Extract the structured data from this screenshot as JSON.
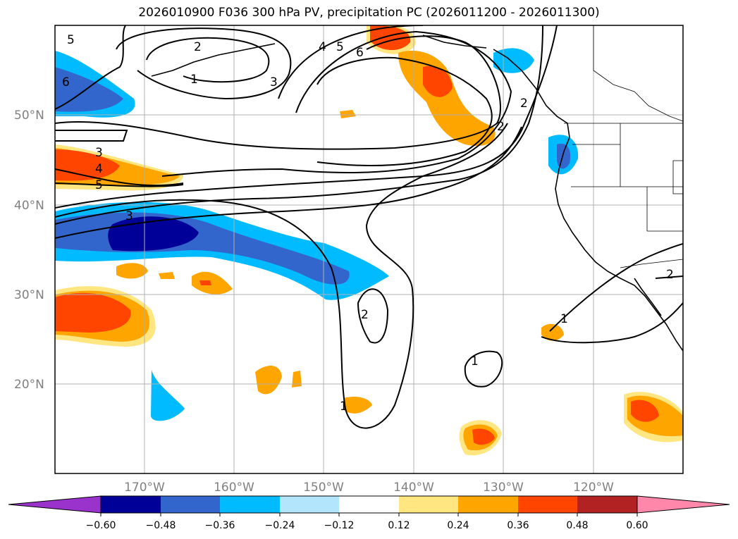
{
  "title": "2026010900 F036 300 hPa PV, precipitation PC (2026011200 - 2026011300)",
  "map": {
    "lat_labels": [
      "50°N",
      "40°N",
      "30°N",
      "20°N"
    ],
    "lon_labels": [
      "170°W",
      "160°W",
      "150°W",
      "140°W",
      "130°W",
      "120°W"
    ],
    "contour_labels": [
      "2",
      "1",
      "3",
      "4",
      "5",
      "6",
      "3",
      "4",
      "5",
      "3",
      "2",
      "1",
      "1",
      "2",
      "1",
      "2",
      "5",
      "6",
      "2"
    ]
  },
  "colorbar": {
    "ticks": [
      "−0.60",
      "−0.48",
      "−0.36",
      "−0.24",
      "−0.12",
      "0.12",
      "0.24",
      "0.36",
      "0.48",
      "0.60"
    ],
    "colors": [
      "#9933cc",
      "#000099",
      "#3366cc",
      "#00bbff",
      "#b3e5fc",
      "#ffffff",
      "#ffe680",
      "#ffa500",
      "#ff4500",
      "#b22222",
      "#ff88aa"
    ]
  }
}
